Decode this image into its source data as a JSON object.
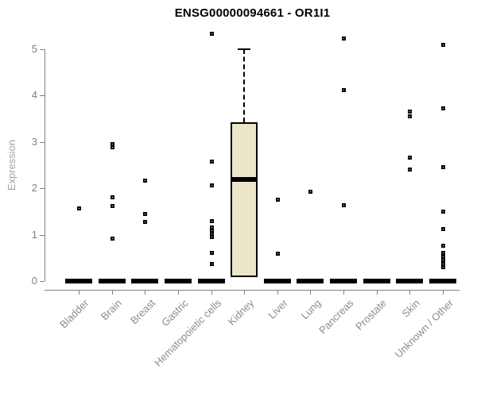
{
  "chart_data": {
    "type": "boxplot",
    "title": "ENSG00000094661 - OR1I1",
    "xlabel": "",
    "ylabel": "Expression",
    "ylim": [
      0,
      5.45
    ],
    "yticks": [
      0,
      1,
      2,
      3,
      4,
      5
    ],
    "grid": false,
    "frame": "left-and-bottom-axes-only",
    "legend": "none",
    "colors": {
      "box_fill": "#ebe6c9",
      "box_border": "#000000",
      "median": "#000000",
      "axis": "#828282",
      "tick_label": "#7f7f7f",
      "category_label": "#8c8c8c",
      "ylabel_color": "#a3a3a3",
      "title_color": "#000000",
      "outlier": "#000000",
      "background": "#ffffff"
    },
    "categories": [
      "Bladder",
      "Brain",
      "Breast",
      "Gastric",
      "Hematopoietic cells",
      "Kidney",
      "Liver",
      "Lung",
      "Pancreas",
      "Prostate",
      "Skin",
      "Unknown / Other"
    ],
    "boxes": [
      {
        "category": "Bladder",
        "q1": 0,
        "median": 0,
        "q3": 0,
        "whisker_low": 0,
        "whisker_high": 0,
        "outliers": [
          1.57
        ]
      },
      {
        "category": "Brain",
        "q1": 0,
        "median": 0,
        "q3": 0,
        "whisker_low": 0,
        "whisker_high": 0,
        "outliers": [
          2.96,
          2.89,
          1.81,
          1.62,
          0.93
        ]
      },
      {
        "category": "Breast",
        "q1": 0,
        "median": 0,
        "q3": 0,
        "whisker_low": 0,
        "whisker_high": 0,
        "outliers": [
          2.18,
          1.45,
          1.28
        ]
      },
      {
        "category": "Gastric",
        "q1": 0,
        "median": 0,
        "q3": 0,
        "whisker_low": 0,
        "whisker_high": 0,
        "outliers": []
      },
      {
        "category": "Hematopoietic cells",
        "q1": 0,
        "median": 0,
        "q3": 0,
        "whisker_low": 0,
        "whisker_high": 0,
        "outliers": [
          5.35,
          2.58,
          2.07,
          1.3,
          1.17,
          1.1,
          1.03,
          0.96,
          0.62,
          0.38
        ]
      },
      {
        "category": "Kidney",
        "q1": 0.08,
        "median": 2.2,
        "q3": 3.43,
        "whisker_low": 0.08,
        "whisker_high": 5.0,
        "outliers": []
      },
      {
        "category": "Liver",
        "q1": 0,
        "median": 0,
        "q3": 0,
        "whisker_low": 0,
        "whisker_high": 0,
        "outliers": [
          1.77,
          0.6
        ]
      },
      {
        "category": "Lung",
        "q1": 0,
        "median": 0,
        "q3": 0,
        "whisker_low": 0,
        "whisker_high": 0,
        "outliers": [
          1.93
        ]
      },
      {
        "category": "Pancreas",
        "q1": 0,
        "median": 0,
        "q3": 0,
        "whisker_low": 0,
        "whisker_high": 0,
        "outliers": [
          5.24,
          4.12,
          1.64
        ]
      },
      {
        "category": "Prostate",
        "q1": 0,
        "median": 0,
        "q3": 0,
        "whisker_low": 0,
        "whisker_high": 0,
        "outliers": []
      },
      {
        "category": "Skin",
        "q1": 0,
        "median": 0,
        "q3": 0,
        "whisker_low": 0,
        "whisker_high": 0,
        "outliers": [
          3.66,
          3.57,
          2.67,
          2.41
        ]
      },
      {
        "category": "Unknown / Other",
        "q1": 0,
        "median": 0,
        "q3": 0,
        "whisker_low": 0,
        "whisker_high": 0,
        "outliers": [
          5.1,
          3.73,
          2.47,
          1.5,
          1.13,
          0.77,
          0.62,
          0.53,
          0.46,
          0.38,
          0.3
        ]
      }
    ]
  }
}
